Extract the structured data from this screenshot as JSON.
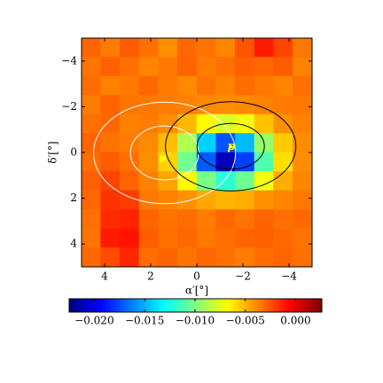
{
  "chart_data": {
    "type": "heatmap",
    "x_label": "α′[°]",
    "y_label": "δ′[°]",
    "xlim": [
      5,
      -5
    ],
    "ylim": [
      5,
      -5
    ],
    "xticks": [
      4,
      2,
      0,
      {
        "value": -2,
        "label": "−2"
      },
      {
        "value": -4,
        "label": "−4"
      }
    ],
    "yticks": [
      {
        "value": -4,
        "label": "−4"
      },
      {
        "value": -2,
        "label": "−2"
      },
      0,
      2,
      4
    ],
    "colormap": "jet",
    "x": [
      4.583,
      3.75,
      2.917,
      2.083,
      1.25,
      0.417,
      -0.417,
      -1.25,
      -2.083,
      -2.917,
      -3.75,
      -4.583
    ],
    "y": [
      -4.583,
      -3.75,
      -2.917,
      -2.083,
      -1.25,
      -0.417,
      0.417,
      1.25,
      2.083,
      2.917,
      3.75,
      4.583
    ],
    "z": [
      [
        -0.003,
        -0.0036,
        -0.0028,
        -0.0033,
        -0.004,
        -0.0031,
        -0.0034,
        -0.0038,
        -0.0026,
        -0.0012,
        -0.0022,
        -0.0035
      ],
      [
        -0.0034,
        -0.0029,
        -0.0033,
        -0.0038,
        -0.0035,
        -0.003,
        -0.0036,
        -0.0033,
        -0.0029,
        -0.0031,
        -0.0028,
        -0.0037
      ],
      [
        -0.0032,
        -0.0037,
        -0.0035,
        -0.0031,
        -0.0036,
        -0.0039,
        -0.0034,
        -0.0037,
        -0.0032,
        -0.0035,
        -0.0038,
        -0.0033
      ],
      [
        -0.0036,
        -0.003,
        -0.0034,
        -0.0035,
        -0.0036,
        -0.0037,
        -0.0039,
        -0.004,
        -0.0039,
        -0.0037,
        -0.0036,
        -0.0035
      ],
      [
        -0.0033,
        -0.0031,
        -0.0037,
        -0.0036,
        -0.004,
        -0.0051,
        -0.0068,
        -0.0077,
        -0.007,
        -0.0053,
        -0.0041,
        -0.0037
      ],
      [
        -0.003,
        -0.0034,
        -0.0036,
        -0.0039,
        -0.0052,
        -0.0088,
        -0.0142,
        -0.0173,
        -0.0148,
        -0.0094,
        -0.0055,
        -0.004
      ],
      [
        -0.0032,
        -0.0028,
        -0.0033,
        -0.004,
        -0.0057,
        -0.0103,
        -0.0171,
        -0.021,
        -0.0178,
        -0.0111,
        -0.006,
        -0.004
      ],
      [
        -0.0029,
        -0.0022,
        -0.003,
        -0.0037,
        -0.0046,
        -0.0067,
        -0.0101,
        -0.012,
        -0.0104,
        -0.0071,
        -0.0048,
        -0.0038
      ],
      [
        -0.0031,
        -0.0018,
        -0.002,
        -0.0035,
        -0.0037,
        -0.0041,
        -0.0047,
        -0.005,
        -0.0048,
        -0.0041,
        -0.0038,
        -0.0035
      ],
      [
        -0.0033,
        -0.0016,
        -0.0014,
        -0.003,
        -0.0034,
        -0.0032,
        -0.0036,
        -0.0031,
        -0.0034,
        -0.003,
        -0.0033,
        -0.0031
      ],
      [
        -0.0034,
        -0.0012,
        -0.001,
        -0.0028,
        -0.0033,
        -0.0031,
        -0.0035,
        -0.0033,
        -0.003,
        -0.0029,
        -0.0031,
        -0.0034
      ],
      [
        -0.0031,
        -0.0024,
        -0.0015,
        -0.0032,
        -0.003,
        -0.0034,
        -0.0031,
        -0.0033,
        -0.0036,
        -0.0032,
        -0.003,
        -0.0033
      ]
    ],
    "contours": [
      {
        "color": "#ffffff",
        "center": [
          1.4,
          0.02
        ],
        "radii": [
          [
            1.48,
            1.18
          ],
          [
            3.08,
            2.22
          ]
        ]
      },
      {
        "color": "#000000",
        "center": [
          -1.47,
          -0.27
        ],
        "radii": [
          [
            1.46,
            1.0
          ],
          [
            2.83,
            1.95
          ]
        ]
      }
    ],
    "points": [
      {
        "label": "p",
        "x": 1.5,
        "y": 0.25
      },
      {
        "label": "p",
        "x": -1.5,
        "y": -0.25
      }
    ],
    "point_color": "#ffff00",
    "colorbar": {
      "lim": [
        -0.0225,
        0.0026
      ],
      "ticks": [
        {
          "value": -0.02,
          "label": "−0.020"
        },
        {
          "value": -0.015,
          "label": "−0.015"
        },
        {
          "value": -0.01,
          "label": "−0.010"
        },
        {
          "value": -0.005,
          "label": "−0.005"
        },
        {
          "value": 0,
          "label": "0.000"
        }
      ]
    }
  }
}
